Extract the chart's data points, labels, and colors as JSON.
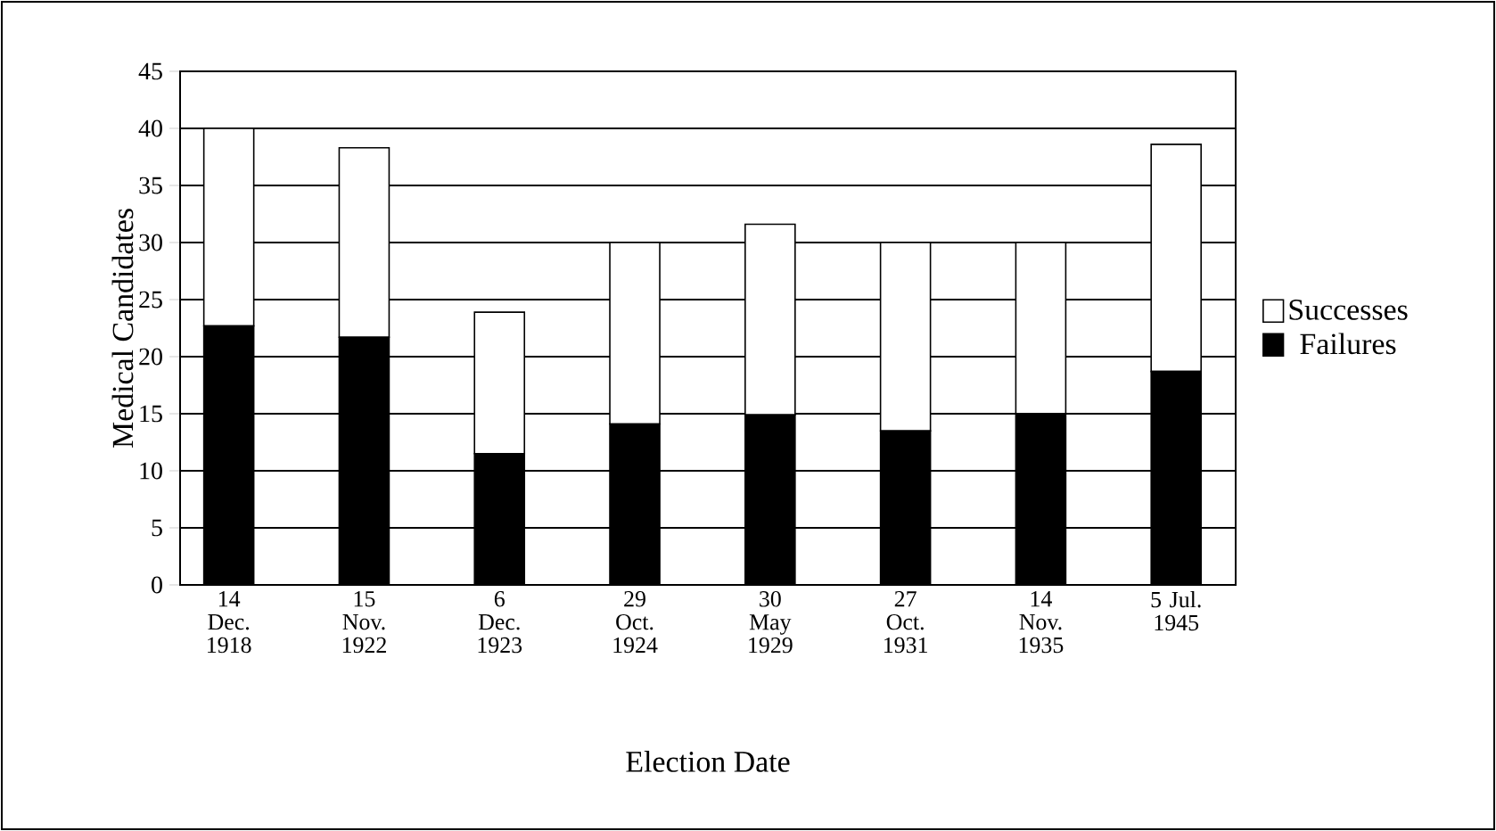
{
  "chart_data": {
    "type": "bar",
    "stacked": true,
    "xlabel": "Election Date",
    "ylabel": "Medical Candidates",
    "categories": [
      "14 Dec. 1918",
      "15 Nov. 1922",
      "6 Dec. 1923",
      "29 Oct. 1924",
      "30 May 1929",
      "27 Oct. 1931",
      "14 Nov. 1935",
      "5 Jul. 1945"
    ],
    "series": [
      {
        "name": "Failures",
        "color": "#000000",
        "values": [
          22.7,
          21.7,
          11.5,
          14.1,
          14.9,
          13.5,
          15,
          18.7
        ]
      },
      {
        "name": "Successes",
        "color": "#ffffff",
        "values": [
          17.3,
          16.6,
          12.4,
          15.9,
          16.7,
          16.5,
          15,
          19.9
        ]
      }
    ],
    "ylim": [
      0,
      45
    ],
    "yticks": [
      0,
      5,
      10,
      15,
      20,
      25,
      30,
      35,
      40,
      45
    ],
    "grid": "y",
    "legend": "right"
  }
}
